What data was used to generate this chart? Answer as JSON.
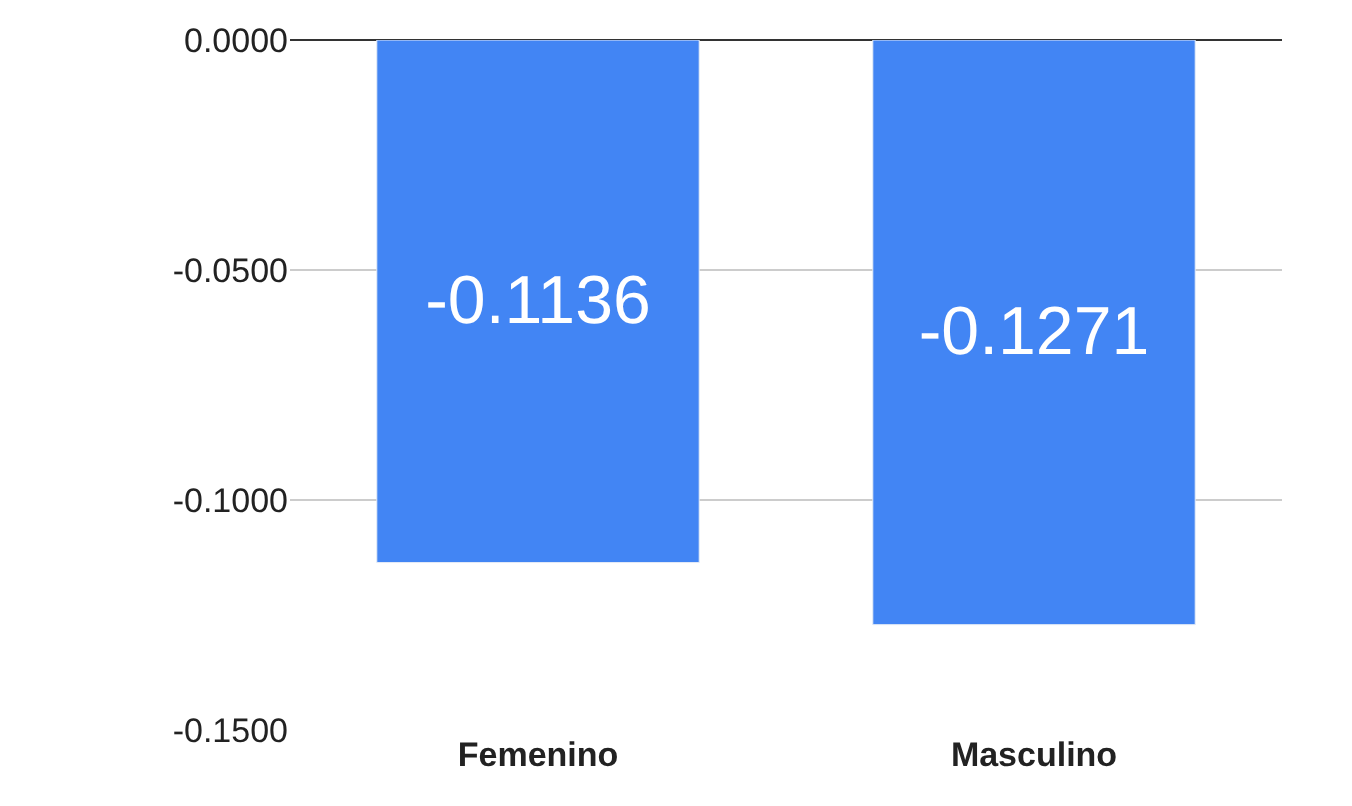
{
  "chart_data": {
    "type": "bar",
    "categories": [
      "Femenino",
      "Masculino"
    ],
    "series": [
      {
        "color": "#4285f4",
        "values": [
          -0.1136,
          -0.1271
        ]
      }
    ],
    "ylim": [
      -0.15,
      0
    ],
    "yticks": [
      {
        "value": 0,
        "label": "0.0000"
      },
      {
        "value": -0.05,
        "label": "-0.0500"
      },
      {
        "value": -0.1,
        "label": "-0.1000"
      },
      {
        "value": -0.15,
        "label": "-0.1500"
      }
    ],
    "grid": "y",
    "legend": false,
    "data_labels": true
  }
}
